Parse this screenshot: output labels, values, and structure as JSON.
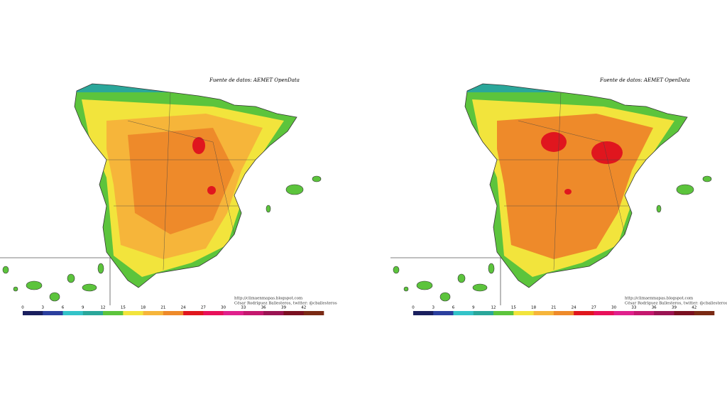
{
  "maps": [
    {
      "source": "Fuente de datos: AEMET OpenData",
      "credit_url": "http://climaenmapas.blogspot.com",
      "credit_author": "César Rodríguez Ballesteros, twitter: @cballesteros",
      "scale": {
        "ticks": [
          0,
          3,
          6,
          9,
          12,
          15,
          18,
          21,
          24,
          27,
          30,
          33,
          36,
          39,
          42
        ],
        "colors": [
          "#1a1f5e",
          "#2b3f9e",
          "#33c3c8",
          "#2aa79a",
          "#5cc43c",
          "#f2e43c",
          "#f6b53a",
          "#ee8a2a",
          "#e0161e",
          "#e8105a",
          "#e0208c",
          "#c4186e",
          "#9a1452",
          "#7a1020",
          "#7a2a14"
        ]
      }
    },
    {
      "source": "Fuente de datos: AEMET OpenData",
      "credit_url": "http://climaenmapas.blogspot.com",
      "credit_author": "César Rodríguez Ballesteros, twitter: @cballesteros",
      "scale": {
        "ticks": [
          0,
          3,
          6,
          9,
          12,
          15,
          18,
          21,
          24,
          27,
          30,
          33,
          36,
          39,
          42
        ],
        "colors": [
          "#1a1f5e",
          "#2b3f9e",
          "#33c3c8",
          "#2aa79a",
          "#5cc43c",
          "#f2e43c",
          "#f6b53a",
          "#ee8a2a",
          "#e0161e",
          "#e8105a",
          "#e0208c",
          "#c4186e",
          "#9a1452",
          "#7a1020",
          "#7a2a14"
        ]
      }
    }
  ]
}
